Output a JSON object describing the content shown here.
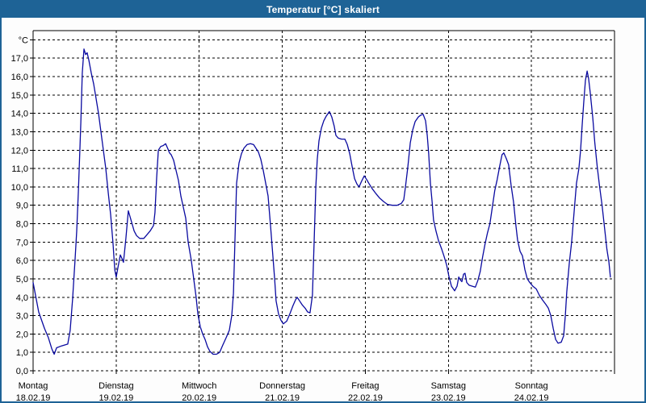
{
  "window": {
    "title": "Temperatur [°C] skaliert"
  },
  "colors": {
    "titlebar_bg": "#1E6396",
    "window_border": "#1E6396",
    "plot_bg": "#FFFFFF",
    "grid": "#000000",
    "line": "#0A0AA0",
    "title_text": "#FFFFFF"
  },
  "chart_data": {
    "type": "line",
    "title": "Temperatur [°C] skaliert",
    "grid": "dashed",
    "legend": "none",
    "y_axis": {
      "unit_label": "°C",
      "min": 0,
      "max": 18.5,
      "grid_step": 1,
      "tick_labels": [
        "0,0",
        "1,0",
        "2,0",
        "3,0",
        "4,0",
        "5,0",
        "6,0",
        "7,0",
        "8,0",
        "9,0",
        "10,0",
        "11,0",
        "12,0",
        "13,0",
        "14,0",
        "15,0",
        "16,0",
        "17,0"
      ]
    },
    "x_axis": {
      "hours_total": 168,
      "days": [
        {
          "name": "Montag",
          "date": "18.02.19"
        },
        {
          "name": "Dienstag",
          "date": "19.02.19"
        },
        {
          "name": "Mittwoch",
          "date": "20.02.19"
        },
        {
          "name": "Donnerstag",
          "date": "21.02.19"
        },
        {
          "name": "Freitag",
          "date": "22.02.19"
        },
        {
          "name": "Samstag",
          "date": "23.02.19"
        },
        {
          "name": "Sonntag",
          "date": "24.02.19"
        }
      ]
    },
    "series": [
      {
        "name": "Temperatur [°C]",
        "color": "#0A0AA0",
        "points": [
          [
            0,
            4.8
          ],
          [
            1.6,
            3.2
          ],
          [
            3.3,
            2.3
          ],
          [
            4.4,
            1.8
          ],
          [
            5.4,
            1.2
          ],
          [
            6.1,
            0.9
          ],
          [
            6.8,
            1.25
          ],
          [
            8.2,
            1.35
          ],
          [
            10,
            1.45
          ],
          [
            10.7,
            2.2
          ],
          [
            11.4,
            3.9
          ],
          [
            12.1,
            6
          ],
          [
            12.6,
            7.6
          ],
          [
            13.1,
            9.8
          ],
          [
            13.5,
            12
          ],
          [
            13.8,
            13.5
          ],
          [
            14.2,
            16.2
          ],
          [
            14.7,
            17.5
          ],
          [
            15.2,
            17.2
          ],
          [
            15.6,
            17.3
          ],
          [
            16.1,
            16.9
          ],
          [
            16.8,
            16.2
          ],
          [
            17.5,
            15.6
          ],
          [
            18.2,
            14.8
          ],
          [
            18.9,
            14
          ],
          [
            19.6,
            13
          ],
          [
            20.3,
            12
          ],
          [
            21,
            11
          ],
          [
            21.7,
            9.7
          ],
          [
            22.4,
            8.5
          ],
          [
            23.1,
            6.9
          ],
          [
            23.6,
            5.5
          ],
          [
            24,
            5.1
          ],
          [
            24.5,
            5.6
          ],
          [
            25.2,
            6.3
          ],
          [
            25.7,
            6.1
          ],
          [
            26.1,
            5.9
          ],
          [
            26.8,
            7.2
          ],
          [
            27.5,
            8.7
          ],
          [
            28.2,
            8.25
          ],
          [
            29.2,
            7.6
          ],
          [
            29.9,
            7.35
          ],
          [
            30.8,
            7.2
          ],
          [
            32,
            7.2
          ],
          [
            32.9,
            7.4
          ],
          [
            33.8,
            7.6
          ],
          [
            34.8,
            7.9
          ],
          [
            35.2,
            8.6
          ],
          [
            35.7,
            10.5
          ],
          [
            36.2,
            12
          ],
          [
            36.9,
            12.2
          ],
          [
            37.6,
            12.25
          ],
          [
            38.3,
            12.35
          ],
          [
            39,
            12.05
          ],
          [
            39.4,
            11.85
          ],
          [
            39.9,
            11.75
          ],
          [
            40.6,
            11.45
          ],
          [
            41.3,
            10.9
          ],
          [
            42,
            10.35
          ],
          [
            42.7,
            9.5
          ],
          [
            43.4,
            8.9
          ],
          [
            44.1,
            8.3
          ],
          [
            44.8,
            7
          ],
          [
            45.7,
            6
          ],
          [
            46.4,
            5
          ],
          [
            47.1,
            4
          ],
          [
            47.6,
            3.1
          ],
          [
            48.3,
            2.4
          ],
          [
            49,
            2
          ],
          [
            49.7,
            1.7
          ],
          [
            50.4,
            1.3
          ],
          [
            51.1,
            1.05
          ],
          [
            52,
            0.9
          ],
          [
            53,
            0.9
          ],
          [
            53.9,
            1
          ],
          [
            54.8,
            1.4
          ],
          [
            55.8,
            1.8
          ],
          [
            56.7,
            2.2
          ],
          [
            57.4,
            3
          ],
          [
            57.9,
            4.2
          ],
          [
            58.3,
            7
          ],
          [
            58.8,
            10.2
          ],
          [
            59.5,
            11.3
          ],
          [
            60.2,
            11.8
          ],
          [
            60.9,
            12.1
          ],
          [
            61.8,
            12.3
          ],
          [
            62.8,
            12.35
          ],
          [
            63.7,
            12.3
          ],
          [
            64.4,
            12.1
          ],
          [
            65.1,
            11.9
          ],
          [
            65.8,
            11.5
          ],
          [
            66.5,
            10.9
          ],
          [
            67.2,
            10.2
          ],
          [
            67.9,
            9.5
          ],
          [
            68.6,
            7.9
          ],
          [
            69.3,
            6.2
          ],
          [
            69.8,
            5
          ],
          [
            70.2,
            3.8
          ],
          [
            70.9,
            3.1
          ],
          [
            71.6,
            2.75
          ],
          [
            72.3,
            2.55
          ],
          [
            73.3,
            2.7
          ],
          [
            74.2,
            3.1
          ],
          [
            75.1,
            3.55
          ],
          [
            75.8,
            3.85
          ],
          [
            76.3,
            4
          ],
          [
            77,
            3.8
          ],
          [
            77.7,
            3.6
          ],
          [
            78.6,
            3.4
          ],
          [
            79.3,
            3.2
          ],
          [
            80,
            3.15
          ],
          [
            80.7,
            4.1
          ],
          [
            81.2,
            7
          ],
          [
            81.7,
            10
          ],
          [
            82.1,
            11.5
          ],
          [
            82.6,
            12.5
          ],
          [
            83.3,
            13.2
          ],
          [
            84,
            13.6
          ],
          [
            84.7,
            13.85
          ],
          [
            85.6,
            14.1
          ],
          [
            86.3,
            13.8
          ],
          [
            87,
            13.3
          ],
          [
            87.5,
            12.8
          ],
          [
            88.2,
            12.65
          ],
          [
            89.1,
            12.6
          ],
          [
            90.1,
            12.6
          ],
          [
            90.8,
            12.3
          ],
          [
            91.5,
            11.8
          ],
          [
            92.2,
            11.1
          ],
          [
            92.9,
            10.45
          ],
          [
            93.6,
            10.15
          ],
          [
            94.2,
            10
          ],
          [
            94.9,
            10.3
          ],
          [
            95.7,
            10.6
          ],
          [
            96.4,
            10.4
          ],
          [
            97,
            10.2
          ],
          [
            98,
            9.9
          ],
          [
            99,
            9.65
          ],
          [
            100.1,
            9.4
          ],
          [
            101.3,
            9.2
          ],
          [
            102.4,
            9.05
          ],
          [
            103.8,
            9
          ],
          [
            105.2,
            9
          ],
          [
            106.4,
            9.1
          ],
          [
            107.1,
            9.3
          ],
          [
            107.6,
            10
          ],
          [
            108.3,
            11.1
          ],
          [
            109,
            12.4
          ],
          [
            109.7,
            13.1
          ],
          [
            110.4,
            13.55
          ],
          [
            111.3,
            13.8
          ],
          [
            112,
            13.9
          ],
          [
            112.7,
            13.95
          ],
          [
            113.4,
            13.6
          ],
          [
            113.9,
            12.8
          ],
          [
            114.3,
            11.8
          ],
          [
            114.8,
            10.2
          ],
          [
            115.3,
            9.2
          ],
          [
            115.7,
            8.2
          ],
          [
            116.4,
            7.6
          ],
          [
            117.1,
            7.1
          ],
          [
            118.1,
            6.6
          ],
          [
            118.8,
            6.2
          ],
          [
            119.5,
            5.75
          ],
          [
            120.2,
            5.1
          ],
          [
            120.9,
            4.6
          ],
          [
            121.8,
            4.35
          ],
          [
            122.5,
            4.6
          ],
          [
            123,
            5.1
          ],
          [
            123.4,
            4.95
          ],
          [
            123.9,
            4.85
          ],
          [
            124.4,
            5.25
          ],
          [
            124.8,
            5.3
          ],
          [
            125.3,
            4.8
          ],
          [
            126,
            4.65
          ],
          [
            126.9,
            4.6
          ],
          [
            127.8,
            4.55
          ],
          [
            128.5,
            4.9
          ],
          [
            129.2,
            5.4
          ],
          [
            129.9,
            6.2
          ],
          [
            130.6,
            6.9
          ],
          [
            131.3,
            7.5
          ],
          [
            132,
            8
          ],
          [
            132.7,
            8.9
          ],
          [
            133.4,
            9.8
          ],
          [
            134.1,
            10.4
          ],
          [
            134.8,
            11.1
          ],
          [
            135.5,
            11.75
          ],
          [
            136,
            11.85
          ],
          [
            136.7,
            11.55
          ],
          [
            137.4,
            11.2
          ],
          [
            138.1,
            10.1
          ],
          [
            138.8,
            9.2
          ],
          [
            139.5,
            7.9
          ],
          [
            140,
            7.1
          ],
          [
            140.7,
            6.5
          ],
          [
            141.4,
            6.25
          ],
          [
            142.1,
            5.5
          ],
          [
            142.8,
            5
          ],
          [
            143.5,
            4.8
          ],
          [
            144.4,
            4.6
          ],
          [
            145.4,
            4.45
          ],
          [
            146.3,
            4.1
          ],
          [
            147.2,
            3.85
          ],
          [
            148.2,
            3.6
          ],
          [
            148.9,
            3.4
          ],
          [
            149.6,
            3
          ],
          [
            150.3,
            2.3
          ],
          [
            151,
            1.7
          ],
          [
            151.7,
            1.5
          ],
          [
            152.6,
            1.55
          ],
          [
            153.3,
            1.9
          ],
          [
            153.8,
            3
          ],
          [
            154.2,
            4.3
          ],
          [
            154.9,
            5.8
          ],
          [
            155.6,
            7
          ],
          [
            156.3,
            8.6
          ],
          [
            157,
            10.2
          ],
          [
            157.7,
            11
          ],
          [
            158.2,
            12
          ],
          [
            158.6,
            13.2
          ],
          [
            159.1,
            14.6
          ],
          [
            159.6,
            15.8
          ],
          [
            160.1,
            16.3
          ],
          [
            160.5,
            15.9
          ],
          [
            161,
            15.1
          ],
          [
            161.7,
            13.8
          ],
          [
            162.3,
            12.4
          ],
          [
            163,
            11.1
          ],
          [
            163.7,
            10
          ],
          [
            164.4,
            9
          ],
          [
            165.1,
            7.8
          ],
          [
            165.8,
            6.6
          ],
          [
            166.4,
            5.9
          ],
          [
            166.8,
            5.1
          ]
        ]
      }
    ]
  }
}
